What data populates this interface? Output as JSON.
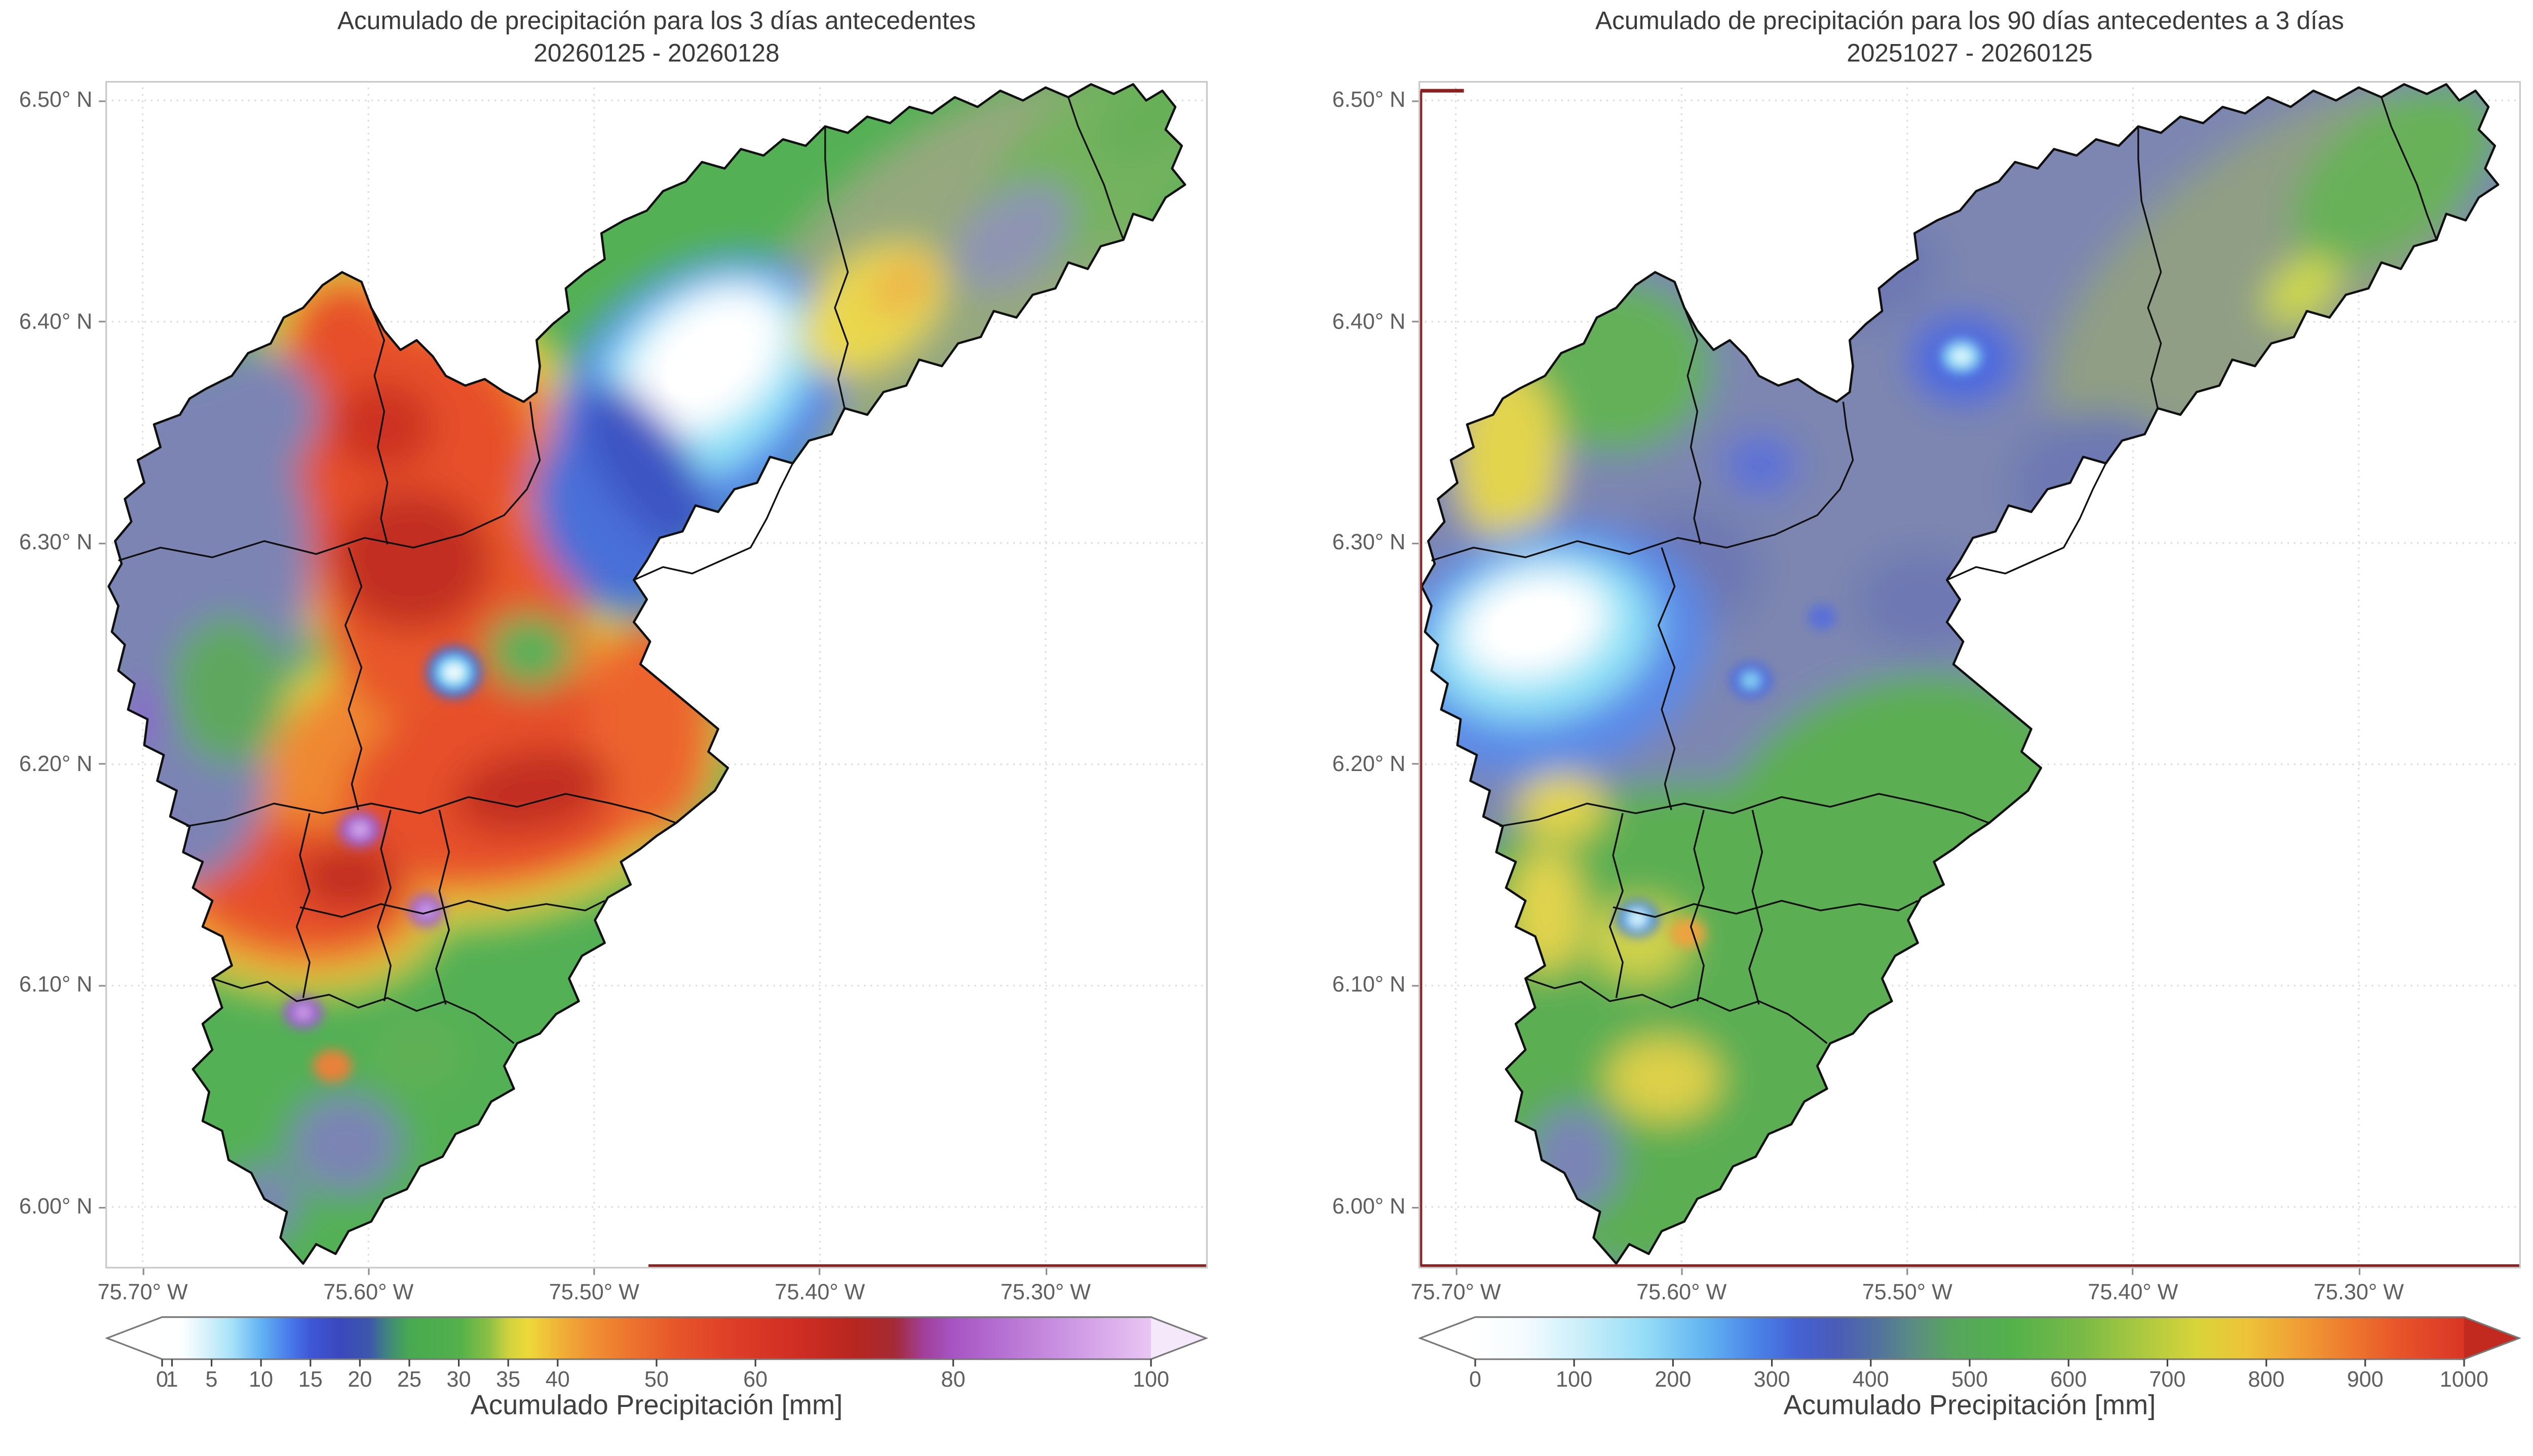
{
  "figure": {
    "background": "#ffffff",
    "grid_color": "#dcdcdc",
    "spine_color": "#c9c9c9",
    "municipality_border_color": "#101010",
    "department_border_color": "#8b2020"
  },
  "chart_data": [
    {
      "type": "heatmap",
      "title": "Acumulado de precipitación para los 3 días antecedentes",
      "subtitle": "20260125 - 20260128",
      "x_tick_labels": [
        "75.70° W",
        "75.60° W",
        "75.50° W",
        "75.40° W",
        "75.30° W"
      ],
      "y_tick_labels": [
        "6.50° N",
        "6.40° N",
        "6.30° N",
        "6.20° N",
        "6.10° N",
        "6.00° N"
      ],
      "xlim": [
        "75.72° W",
        "75.23° W"
      ],
      "ylim": [
        "5.97° N",
        "6.51° N"
      ],
      "grid": true,
      "colorbar": {
        "label": "Acumulado Precipitación [mm]",
        "orientation": "horizontal",
        "extend": "both",
        "vmin": 0,
        "vmax": 100,
        "tick_labels": [
          "0",
          "1",
          "5",
          "10",
          "15",
          "20",
          "25",
          "30",
          "35",
          "40",
          "50",
          "60",
          "80",
          "100"
        ],
        "tick_values": [
          0,
          1,
          5,
          10,
          15,
          20,
          25,
          30,
          35,
          40,
          50,
          60,
          80,
          100
        ],
        "under_color": "#ffffff",
        "over_color": "#f4e8fa",
        "stops": [
          [
            0,
            "#ffffff"
          ],
          [
            2,
            "#fdffff"
          ],
          [
            4,
            "#dff4fc"
          ],
          [
            7,
            "#a8e2f8"
          ],
          [
            10,
            "#62b2f2"
          ],
          [
            13,
            "#4878ea"
          ],
          [
            15,
            "#3f57d6"
          ],
          [
            18,
            "#3a48bd"
          ],
          [
            21,
            "#3d58aa"
          ],
          [
            23,
            "#418a78"
          ],
          [
            25,
            "#47a950"
          ],
          [
            30,
            "#52b14b"
          ],
          [
            33,
            "#8abf44"
          ],
          [
            35,
            "#cfd23d"
          ],
          [
            37,
            "#edd93a"
          ],
          [
            40,
            "#f0b437"
          ],
          [
            43,
            "#f09434"
          ],
          [
            47,
            "#ed762e"
          ],
          [
            52,
            "#e7552a"
          ],
          [
            58,
            "#dd3d27"
          ],
          [
            64,
            "#d02e23"
          ],
          [
            70,
            "#b7261f"
          ],
          [
            74,
            "#a42a35"
          ],
          [
            77,
            "#a13f99"
          ],
          [
            80,
            "#a754c4"
          ],
          [
            85,
            "#b671d2"
          ],
          [
            91,
            "#ca92e2"
          ],
          [
            100,
            "#e9c6f3"
          ]
        ]
      },
      "field": {
        "base": "#53b054",
        "coarse": [
          [
            520,
            115,
            160,
            78,
            -38,
            "#95a87e"
          ],
          [
            615,
            50,
            88,
            46,
            -38,
            "#74b25e"
          ],
          [
            560,
            96,
            42,
            26,
            -38,
            "#8e94b2"
          ],
          [
            648,
            20,
            42,
            24,
            -38,
            "#68b058"
          ],
          [
            150,
            162,
            52,
            56,
            0,
            "#dcd840"
          ],
          [
            182,
            242,
            122,
            112,
            0,
            "#dcd840"
          ],
          [
            232,
            422,
            152,
            96,
            -10,
            "#dcd840"
          ],
          [
            114,
            500,
            96,
            62,
            8,
            "#dcd840"
          ],
          [
            150,
            163,
            42,
            46,
            0,
            "#ef8832"
          ],
          [
            180,
            241,
            108,
            99,
            0,
            "#ef8832"
          ],
          [
            234,
            421,
            139,
            83,
            -10,
            "#ef8832"
          ],
          [
            114,
            499,
            85,
            51,
            8,
            "#ef8832"
          ],
          [
            148,
            162,
            32,
            36,
            0,
            "#e64f2a"
          ],
          [
            173,
            230,
            89,
            81,
            0,
            "#e64f2a"
          ],
          [
            215,
            331,
            81,
            71,
            0,
            "#e8562c"
          ],
          [
            251,
            431,
            106,
            61,
            -12,
            "#e64f2a"
          ],
          [
            119,
            497,
            69,
            39,
            8,
            "#e64f2a"
          ],
          [
            337,
            400,
            39,
            66,
            0,
            "#ec642e"
          ],
          [
            189,
            296,
            49,
            43,
            0,
            "#c22f20"
          ],
          [
            263,
            438,
            49,
            25,
            -10,
            "#c22f20"
          ],
          [
            150,
            491,
            31,
            21,
            0,
            "#c22f20"
          ],
          [
            171,
            213,
            31,
            27,
            0,
            "#cc3322"
          ],
          [
            262,
            352,
            27,
            23,
            0,
            "#55b158"
          ],
          [
            301,
            256,
            36,
            41,
            0,
            "#55b158"
          ],
          [
            55,
            296,
            72,
            117,
            0,
            "#7b84b4"
          ],
          [
            46,
            430,
            53,
            66,
            0,
            "#7b84b4"
          ],
          [
            91,
            205,
            41,
            39,
            0,
            "#7b84b4"
          ],
          [
            76,
            376,
            36,
            46,
            0,
            "#5fa75f"
          ],
          [
            22,
            391,
            15,
            21,
            0,
            "#8a68cc"
          ],
          [
            30,
            478,
            13,
            17,
            0,
            "#8a68cc"
          ],
          [
            366,
            196,
            101,
            73,
            -40,
            "#4f7de8"
          ],
          [
            367,
            186,
            79,
            55,
            -40,
            "#8fe2f7"
          ],
          [
            371,
            173,
            55,
            37,
            -40,
            "#ffffff"
          ],
          [
            309,
            272,
            41,
            59,
            -28,
            "#4a6fd8"
          ],
          [
            333,
            238,
            27,
            61,
            -35,
            "#3c55c2"
          ],
          [
            473,
            141,
            51,
            33,
            -38,
            "#ead84e"
          ],
          [
            491,
            127,
            21,
            14,
            -38,
            "#eeb04a"
          ],
          [
            148,
            656,
            35,
            31,
            0,
            "#7b84b4"
          ],
          [
            98,
            692,
            21,
            23,
            0,
            "#7b84b4"
          ],
          [
            192,
            600,
            31,
            26,
            0,
            "#5fb055"
          ]
        ],
        "fine": [
          [
            371,
            173,
            30,
            18,
            -40,
            "#ffffff"
          ],
          [
            215,
            365,
            17,
            16,
            0,
            "#3a6ae0"
          ],
          [
            215,
            365,
            11,
            10,
            0,
            "#7adef5"
          ],
          [
            215,
            365,
            6,
            5,
            0,
            "#ffffff"
          ],
          [
            157,
            462,
            13,
            11,
            0,
            "#9a5ad0"
          ],
          [
            157,
            462,
            6,
            5,
            0,
            "#d8aaec"
          ],
          [
            198,
            512,
            11,
            10,
            0,
            "#9a5ad0"
          ],
          [
            198,
            512,
            5,
            4,
            0,
            "#d8aaec"
          ],
          [
            122,
            575,
            12,
            10,
            0,
            "#9a5ad0"
          ],
          [
            122,
            575,
            5,
            4,
            0,
            "#d8aaec"
          ],
          [
            140,
            608,
            12,
            10,
            0,
            "#e8813a"
          ]
        ]
      }
    },
    {
      "type": "heatmap",
      "title": "Acumulado de precipitación para los 90 días antecedentes a 3 días",
      "subtitle": "20251027 - 20260125",
      "x_tick_labels": [
        "75.70° W",
        "75.60° W",
        "75.50° W",
        "75.40° W",
        "75.30° W"
      ],
      "y_tick_labels": [
        "6.50° N",
        "6.40° N",
        "6.30° N",
        "6.20° N",
        "6.10° N",
        "6.00° N"
      ],
      "xlim": [
        "75.72° W",
        "75.23° W"
      ],
      "ylim": [
        "5.97° N",
        "6.51° N"
      ],
      "grid": true,
      "colorbar": {
        "label": "Acumulado Precipitación [mm]",
        "orientation": "horizontal",
        "extend": "both",
        "vmin": 0,
        "vmax": 1000,
        "tick_labels": [
          "0",
          "100",
          "200",
          "300",
          "400",
          "500",
          "600",
          "700",
          "800",
          "900",
          "1000"
        ],
        "tick_values": [
          0,
          100,
          200,
          300,
          400,
          500,
          600,
          700,
          800,
          900,
          1000
        ],
        "under_color": "#ffffff",
        "over_color": "#c22a1f",
        "stops": [
          [
            0,
            "#ffffff"
          ],
          [
            50,
            "#f4fbfe"
          ],
          [
            110,
            "#c8eefa"
          ],
          [
            170,
            "#97ddf7"
          ],
          [
            230,
            "#64b6f2"
          ],
          [
            285,
            "#4a82e8"
          ],
          [
            325,
            "#4562d4"
          ],
          [
            365,
            "#495cb8"
          ],
          [
            405,
            "#52719f"
          ],
          [
            445,
            "#5b8e80"
          ],
          [
            485,
            "#57a65d"
          ],
          [
            540,
            "#52b14b"
          ],
          [
            610,
            "#78b946"
          ],
          [
            670,
            "#a8c840"
          ],
          [
            730,
            "#d9d43a"
          ],
          [
            780,
            "#eec338"
          ],
          [
            830,
            "#f0a035"
          ],
          [
            880,
            "#ee7c2f"
          ],
          [
            930,
            "#e8572a"
          ],
          [
            1000,
            "#da3526"
          ]
        ]
      },
      "field": {
        "base": "#7d86b0",
        "coarse": [
          [
            170,
            585,
            196,
            152,
            0,
            "#5cae53"
          ],
          [
            296,
            456,
            116,
            86,
            -20,
            "#5cae53"
          ],
          [
            120,
            176,
            61,
            53,
            0,
            "#64b058"
          ],
          [
            55,
            231,
            33,
            56,
            0,
            "#e2d44e"
          ],
          [
            520,
            118,
            156,
            74,
            -38,
            "#8f9e85"
          ],
          [
            602,
            58,
            72,
            42,
            -38,
            "#68b158"
          ],
          [
            421,
            251,
            56,
            46,
            0,
            "#6e78b2"
          ],
          [
            256,
            114,
            66,
            39,
            0,
            "#6e78b2"
          ],
          [
            166,
            301,
            46,
            39,
            0,
            "#6e78b2"
          ],
          [
            311,
            321,
            41,
            31,
            0,
            "#6e78b2"
          ],
          [
            80,
            351,
            101,
            76,
            -15,
            "#5a8ae8"
          ],
          [
            76,
            343,
            71,
            51,
            -15,
            "#8fe2f7"
          ],
          [
            71,
            336,
            47,
            32,
            -15,
            "#ffffff"
          ],
          [
            336,
            172,
            33,
            28,
            0,
            "#4a68e0"
          ],
          [
            211,
            237,
            23,
            19,
            0,
            "#5a70d8"
          ],
          [
            88,
            448,
            27,
            21,
            0,
            "#e2d44e"
          ],
          [
            79,
            512,
            23,
            39,
            0,
            "#e2d44e"
          ],
          [
            151,
            616,
            35,
            26,
            0,
            "#ddd04a"
          ],
          [
            136,
            531,
            31,
            25,
            0,
            "#d0d24c"
          ],
          [
            96,
            666,
            28,
            33,
            0,
            "#7a84b6"
          ],
          [
            431,
            311,
            36,
            56,
            -15,
            "#74a878"
          ],
          [
            545,
            129,
            27,
            17,
            -38,
            "#ccd84a"
          ]
        ],
        "fine": [
          [
            70,
            335,
            26,
            16,
            -15,
            "#ffffff"
          ],
          [
            335,
            170,
            12,
            10,
            0,
            "#8ad8f5"
          ],
          [
            335,
            170,
            5,
            4,
            0,
            "#eefcff"
          ],
          [
            205,
            370,
            13,
            11,
            0,
            "#4a68e0"
          ],
          [
            205,
            370,
            6,
            5,
            0,
            "#8ad8f5"
          ],
          [
            249,
            331,
            9,
            8,
            0,
            "#5a70d8"
          ],
          [
            135,
            517,
            13,
            11,
            0,
            "#3a6ae0"
          ],
          [
            135,
            517,
            8,
            7,
            0,
            "#7adef5"
          ],
          [
            135,
            517,
            4,
            4,
            0,
            "#ffffff"
          ],
          [
            166,
            526,
            11,
            9,
            0,
            "#eda23f"
          ]
        ]
      }
    }
  ]
}
